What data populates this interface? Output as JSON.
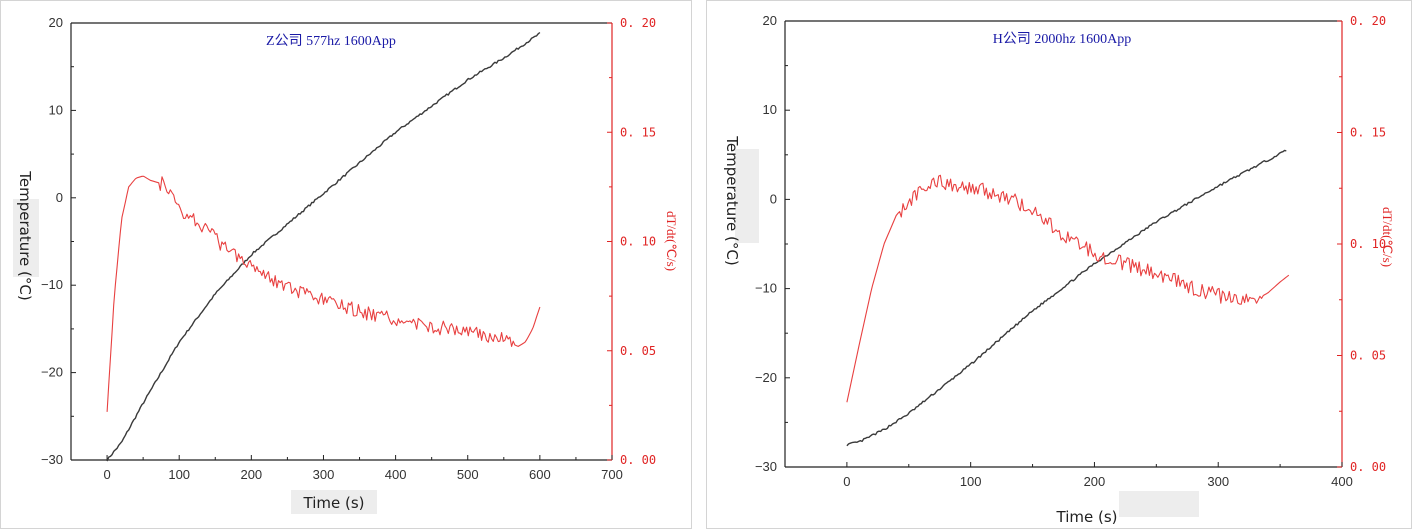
{
  "chart_data": [
    {
      "type": "line",
      "title": "Z公司 577hz 1600App",
      "xlabel": "Time (s)",
      "ylabel": "Temperature (°C)",
      "y2label": "dT/dt(℃/s)",
      "xlim": [
        -50,
        700
      ],
      "ylim": [
        -30,
        20
      ],
      "y2lim": [
        0.0,
        0.2
      ],
      "xticks": [
        0,
        100,
        200,
        300,
        400,
        500,
        600,
        700
      ],
      "yticks": [
        -30,
        -20,
        -10,
        0,
        10,
        20
      ],
      "y2ticks": [
        "0.00",
        "0.05",
        "0.10",
        "0.15",
        "0.20"
      ],
      "series": [
        {
          "axis": "left",
          "color": "#3a3a3a",
          "x": [
            0,
            20,
            50,
            100,
            150,
            200,
            250,
            300,
            350,
            400,
            450,
            500,
            550,
            600
          ],
          "y": [
            -30,
            -28,
            -23.5,
            -16.5,
            -11,
            -6.5,
            -3,
            0.5,
            4,
            7.5,
            10.5,
            13.5,
            16,
            18.8
          ]
        },
        {
          "axis": "right",
          "color": "#e84040",
          "x": [
            0,
            10,
            20,
            30,
            40,
            50,
            60,
            80,
            100,
            130,
            160,
            200,
            230,
            260,
            300,
            350,
            400,
            450,
            500,
            540,
            570,
            580,
            590,
            600
          ],
          "y": [
            0.022,
            0.075,
            0.11,
            0.125,
            0.129,
            0.13,
            0.128,
            0.126,
            0.115,
            0.108,
            0.098,
            0.09,
            0.083,
            0.077,
            0.073,
            0.068,
            0.064,
            0.061,
            0.059,
            0.056,
            0.052,
            0.054,
            0.06,
            0.07
          ]
        }
      ]
    },
    {
      "type": "line",
      "title": "H公司 2000hz 1600App",
      "xlabel": "Time (s)",
      "ylabel": "Temperature (°C)",
      "y2label": "dT/dt(℃/s)",
      "xlim": [
        -50,
        400
      ],
      "ylim": [
        -30,
        20
      ],
      "y2lim": [
        0.0,
        0.2
      ],
      "xticks": [
        0,
        100,
        200,
        300,
        400
      ],
      "yticks": [
        -30,
        -20,
        -10,
        0,
        10,
        20
      ],
      "y2ticks": [
        "0.00",
        "0.05",
        "0.10",
        "0.15",
        "0.20"
      ],
      "series": [
        {
          "axis": "left",
          "color": "#3a3a3a",
          "x": [
            0,
            10,
            30,
            50,
            100,
            150,
            200,
            250,
            300,
            355
          ],
          "y": [
            -27.5,
            -27.2,
            -25.8,
            -24,
            -18.5,
            -12.5,
            -7.2,
            -2.5,
            1.5,
            5.5
          ]
        },
        {
          "axis": "right",
          "color": "#e84040",
          "x": [
            0,
            10,
            20,
            30,
            40,
            50,
            60,
            75,
            90,
            110,
            130,
            150,
            170,
            200,
            230,
            260,
            280,
            300,
            320,
            330,
            340,
            350,
            357
          ],
          "y": [
            0.029,
            0.055,
            0.08,
            0.1,
            0.113,
            0.119,
            0.124,
            0.128,
            0.126,
            0.124,
            0.121,
            0.115,
            0.106,
            0.096,
            0.09,
            0.085,
            0.08,
            0.077,
            0.074,
            0.075,
            0.078,
            0.083,
            0.086
          ]
        }
      ]
    }
  ]
}
